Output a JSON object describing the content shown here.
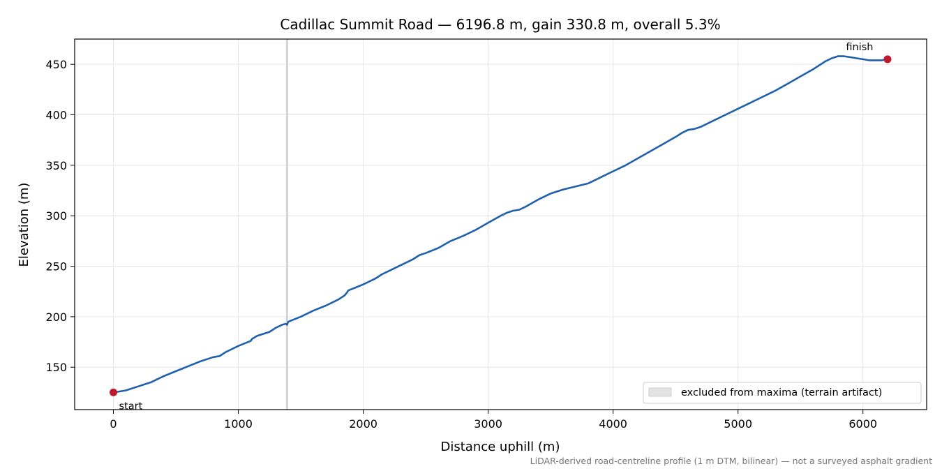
{
  "chart_data": {
    "type": "line",
    "title": "Cadillac Summit Road — 6196.8 m, gain 330.8 m, overall 5.3%",
    "xlabel": "Distance uphill (m)",
    "ylabel": "Elevation (m)",
    "xlim": [
      -310,
      6510
    ],
    "ylim": [
      108,
      475
    ],
    "x_ticks": [
      0,
      1000,
      2000,
      3000,
      4000,
      5000,
      6000
    ],
    "y_ticks": [
      150,
      200,
      250,
      300,
      350,
      400,
      450
    ],
    "grid": true,
    "series": [
      {
        "name": "",
        "color": "#1f5fad",
        "x": [
          0,
          50,
          100,
          200,
          300,
          400,
          500,
          600,
          700,
          800,
          850,
          900,
          1000,
          1100,
          1110,
          1150,
          1200,
          1250,
          1300,
          1350,
          1380,
          1390,
          1400,
          1500,
          1600,
          1700,
          1800,
          1850,
          1870,
          1880,
          1900,
          2000,
          2100,
          2150,
          2200,
          2300,
          2400,
          2450,
          2500,
          2600,
          2700,
          2800,
          2900,
          3000,
          3100,
          3150,
          3200,
          3250,
          3300,
          3400,
          3500,
          3600,
          3700,
          3800,
          3850,
          3900,
          4000,
          4100,
          4200,
          4300,
          4400,
          4500,
          4550,
          4600,
          4650,
          4700,
          4800,
          4900,
          5000,
          5100,
          5200,
          5300,
          5400,
          5500,
          5600,
          5700,
          5750,
          5800,
          5850,
          5900,
          5950,
          6000,
          6050,
          6100,
          6150,
          6196.8
        ],
        "values": [
          125,
          126,
          127,
          131,
          135,
          141,
          146,
          151,
          156,
          160,
          161,
          165,
          171,
          176,
          178,
          181,
          183,
          185,
          189,
          192,
          193,
          192,
          195,
          200,
          206,
          211,
          217,
          221,
          224,
          226,
          227,
          232,
          238,
          242,
          245,
          251,
          257,
          261,
          263,
          268,
          275,
          280,
          286,
          293,
          300,
          303,
          305,
          306,
          309,
          316,
          322,
          326,
          329,
          332,
          335,
          338,
          344,
          350,
          357,
          364,
          371,
          378,
          382,
          385,
          386,
          388,
          394,
          400,
          406,
          412,
          418,
          424,
          431,
          438,
          445,
          453,
          456,
          458,
          458,
          457,
          456,
          455,
          454,
          454,
          454,
          455
        ]
      }
    ],
    "markers": [
      {
        "label": "start",
        "x": 0,
        "y": 125,
        "color": "#c0182c"
      },
      {
        "label": "finish",
        "x": 6196.8,
        "y": 455,
        "color": "#c0182c"
      }
    ],
    "excluded_band": {
      "x": 1390,
      "color": "#d3d3d3"
    },
    "legend": {
      "position": "lower-right",
      "entries": [
        {
          "label": "excluded from maxima (terrain artifact)",
          "color": "#e3e3e3"
        }
      ]
    },
    "footnote": "LiDAR-derived road-centreline profile (1 m DTM, bilinear) — not a surveyed asphalt gradient"
  }
}
